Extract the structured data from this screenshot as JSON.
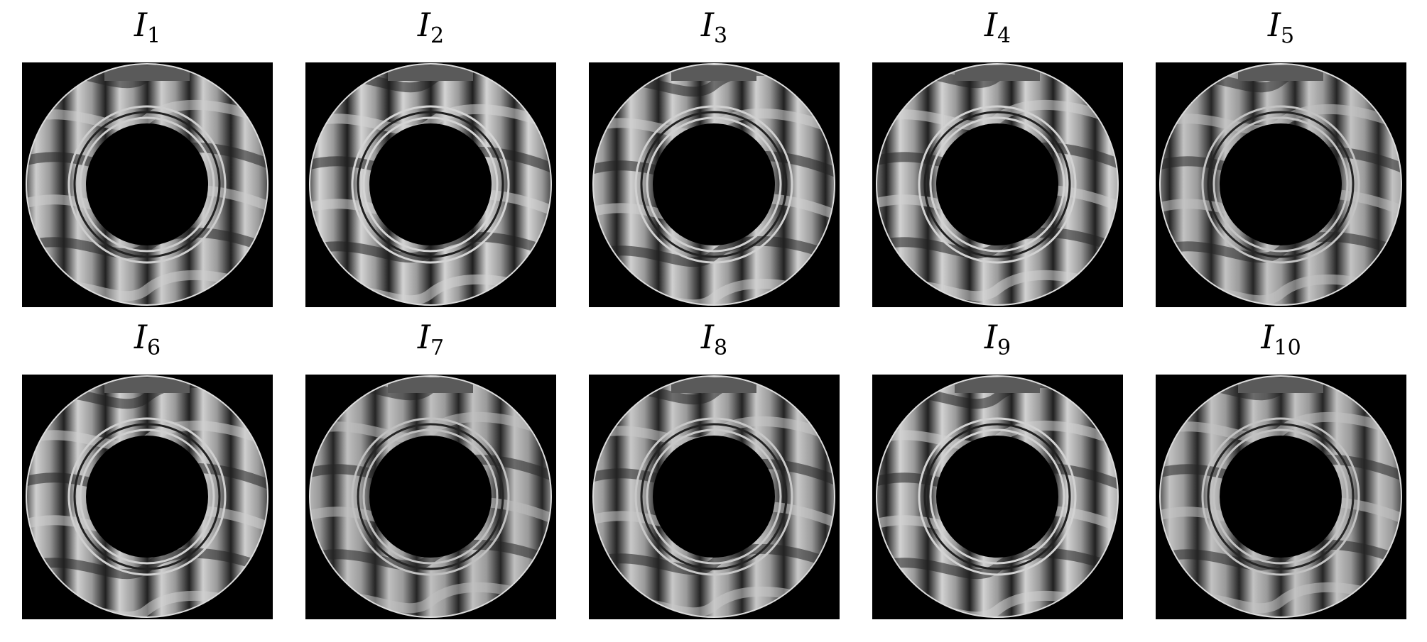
{
  "figure": {
    "panels": [
      {
        "symbol": "I",
        "index": "1",
        "tone": 0.55
      },
      {
        "symbol": "I",
        "index": "2",
        "tone": 0.62
      },
      {
        "symbol": "I",
        "index": "3",
        "tone": 0.58
      },
      {
        "symbol": "I",
        "index": "4",
        "tone": 0.6
      },
      {
        "symbol": "I",
        "index": "5",
        "tone": 0.45
      },
      {
        "symbol": "I",
        "index": "6",
        "tone": 0.57
      },
      {
        "symbol": "I",
        "index": "7",
        "tone": 0.42
      },
      {
        "symbol": "I",
        "index": "8",
        "tone": 0.5
      },
      {
        "symbol": "I",
        "index": "9",
        "tone": 0.6
      },
      {
        "symbol": "I",
        "index": "10",
        "tone": 0.44
      }
    ],
    "colors": {
      "background": "#000000",
      "fringe_light": "#f2f2f2",
      "fringe_dark": "#1a1a1a"
    }
  }
}
